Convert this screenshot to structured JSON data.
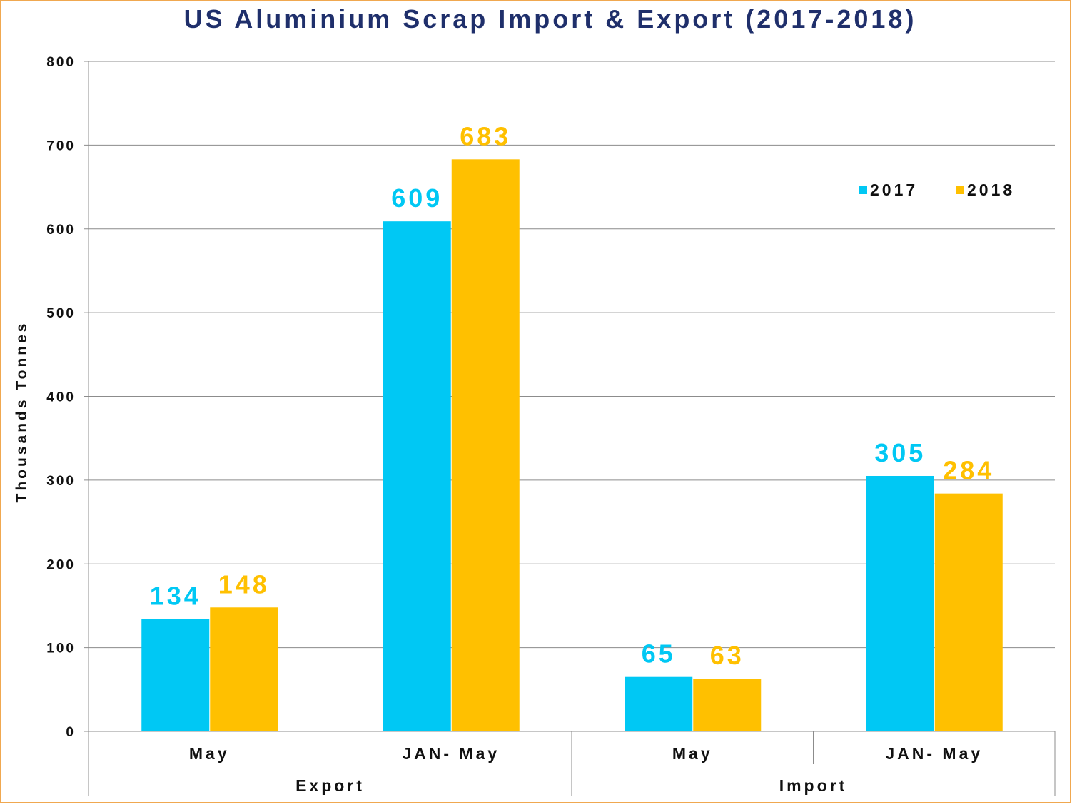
{
  "chart_data": {
    "type": "bar",
    "title": "US Aluminium Scrap Import & Export (2017-2018)",
    "ylabel": "Thousands Tonnes",
    "xlabel": "",
    "ylim": [
      0,
      800
    ],
    "yticks": [
      0,
      100,
      200,
      300,
      400,
      500,
      600,
      700,
      800
    ],
    "grid": true,
    "legend_position": "top-right",
    "categories": [
      "May",
      "JAN- May",
      "May",
      "JAN- May"
    ],
    "groups": [
      {
        "label": "Export",
        "span": 2
      },
      {
        "label": "Import",
        "span": 2
      }
    ],
    "series": [
      {
        "name": "2017",
        "color": "#00c8f4",
        "values": [
          134,
          609,
          65,
          305
        ]
      },
      {
        "name": "2018",
        "color": "#ffc000",
        "values": [
          148,
          683,
          63,
          284
        ]
      }
    ]
  }
}
